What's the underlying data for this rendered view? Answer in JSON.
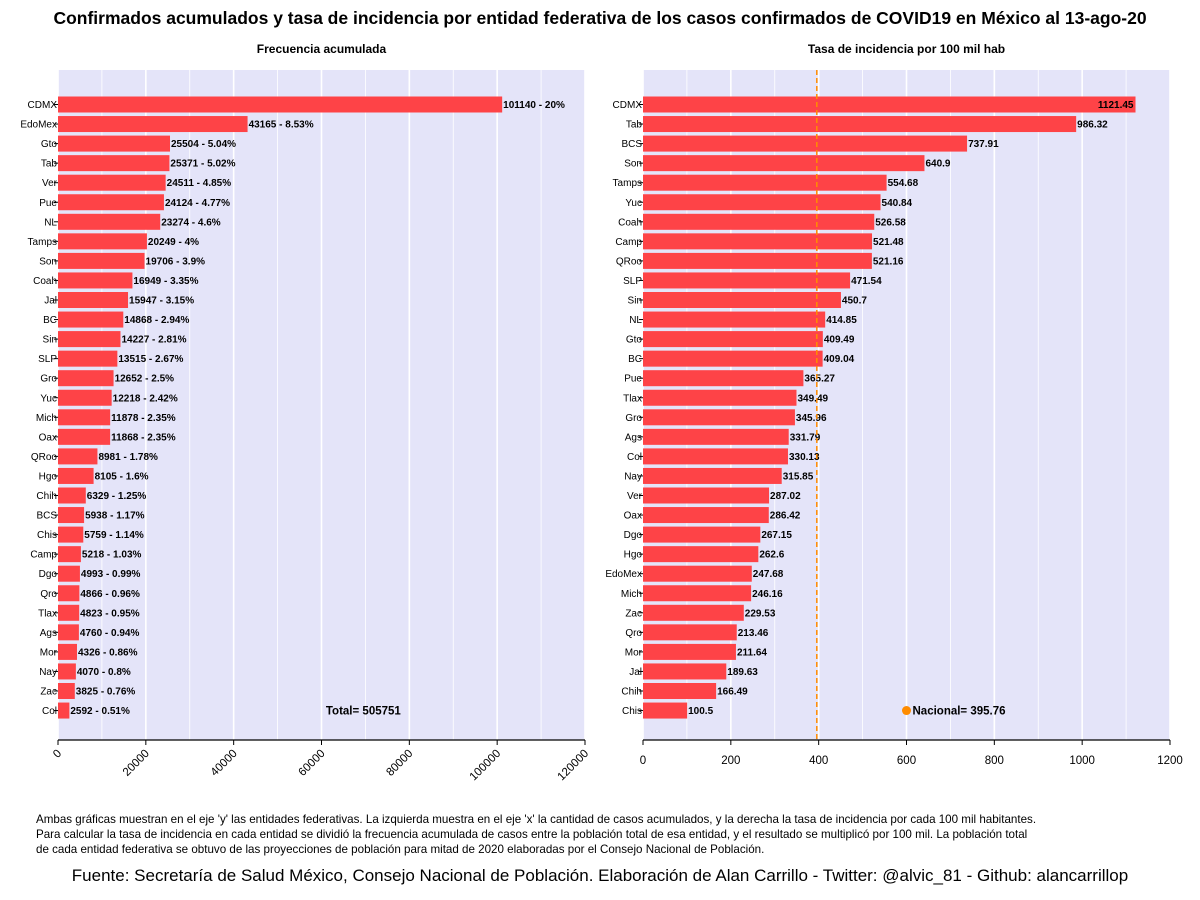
{
  "title": "Confirmados acumulados y tasa de incidencia por entidad federativa de los casos confirmados de COVID19 en México al 13-ago-20",
  "colors": {
    "bar": "#fe4347",
    "panel_bg": "#e4e4f9",
    "grid": "#ffffff",
    "reference_line": "#ff8c00",
    "reference_point": "#ff8c00"
  },
  "chart_data": [
    {
      "type": "bar",
      "orientation": "horizontal",
      "title": "Frecuencia acumulada",
      "xlabel": "",
      "ylabel": "",
      "xlim": [
        0,
        120000
      ],
      "xticks": [
        "0",
        "20000",
        "40000",
        "60000",
        "80000",
        "100000",
        "120000"
      ],
      "xtick_values": [
        0,
        20000,
        40000,
        60000,
        80000,
        100000,
        120000
      ],
      "grid": true,
      "categories": [
        "CDMX",
        "EdoMex",
        "Gto",
        "Tab",
        "Ver",
        "Pue",
        "NL",
        "Tamps",
        "Son",
        "Coah",
        "Jal",
        "BC",
        "Sin",
        "SLP",
        "Gro",
        "Yuc",
        "Mich",
        "Oax",
        "QRoo",
        "Hgo",
        "Chih",
        "BCS",
        "Chis",
        "Camp",
        "Dgo",
        "Qro",
        "Tlax",
        "Ags",
        "Mor",
        "Nay",
        "Zac",
        "Col"
      ],
      "values": [
        101140,
        43165,
        25504,
        25371,
        24511,
        24124,
        23274,
        20249,
        19706,
        16949,
        15947,
        14868,
        14227,
        13515,
        12652,
        12218,
        11878,
        11868,
        8981,
        8105,
        6329,
        5938,
        5759,
        5218,
        4993,
        4866,
        4823,
        4760,
        4326,
        4070,
        3825,
        2592
      ],
      "data_labels": [
        "101140 - 20%",
        "43165 - 8.53%",
        "25504 - 5.04%",
        "25371 - 5.02%",
        "24511 - 4.85%",
        "24124 - 4.77%",
        "23274 - 4.6%",
        "20249 - 4%",
        "19706 - 3.9%",
        "16949 - 3.35%",
        "15947 - 3.15%",
        "14868 - 2.94%",
        "14227 - 2.81%",
        "13515 - 2.67%",
        "12652 - 2.5%",
        "12218 - 2.42%",
        "11878 - 2.35%",
        "11868 - 2.35%",
        "8981 - 1.78%",
        "8105 - 1.6%",
        "6329 - 1.25%",
        "5938 - 1.17%",
        "5759 - 1.14%",
        "5218 - 1.03%",
        "4993 - 0.99%",
        "4866 - 0.96%",
        "4823 - 0.95%",
        "4760 - 0.94%",
        "4326 - 0.86%",
        "4070 - 0.8%",
        "3825 - 0.76%",
        "2592 - 0.51%"
      ],
      "annotation": "Total= 505751"
    },
    {
      "type": "bar",
      "orientation": "horizontal",
      "title": "Tasa de incidencia por 100 mil hab",
      "xlabel": "",
      "ylabel": "",
      "xlim": [
        0,
        1200
      ],
      "xticks": [
        "0",
        "200",
        "400",
        "600",
        "800",
        "1000",
        "1200"
      ],
      "xtick_values": [
        0,
        200,
        400,
        600,
        800,
        1000,
        1200
      ],
      "grid": true,
      "categories": [
        "CDMX",
        "Tab",
        "BCS",
        "Son",
        "Tamps",
        "Yuc",
        "Coah",
        "Camp",
        "QRoo",
        "SLP",
        "Sin",
        "NL",
        "Gto",
        "BC",
        "Pue",
        "Tlax",
        "Gro",
        "Ags",
        "Col",
        "Nay",
        "Ver",
        "Oax",
        "Dgo",
        "Hgo",
        "EdoMex",
        "Mich",
        "Zac",
        "Qro",
        "Mor",
        "Jal",
        "Chih",
        "Chis"
      ],
      "values": [
        1121.45,
        986.32,
        737.91,
        640.9,
        554.68,
        540.84,
        526.58,
        521.48,
        521.16,
        471.54,
        450.7,
        414.85,
        409.49,
        409.04,
        365.27,
        349.49,
        345.96,
        331.79,
        330.13,
        315.85,
        287.02,
        286.42,
        267.15,
        262.6,
        247.68,
        246.16,
        229.53,
        213.46,
        211.64,
        189.63,
        166.49,
        100.5
      ],
      "data_labels": [
        "1121.45",
        "986.32",
        "737.91",
        "640.9",
        "554.68",
        "540.84",
        "526.58",
        "521.48",
        "521.16",
        "471.54",
        "450.7",
        "414.85",
        "409.49",
        "409.04",
        "365.27",
        "349.49",
        "345.96",
        "331.79",
        "330.13",
        "315.85",
        "287.02",
        "286.42",
        "267.15",
        "262.6",
        "247.68",
        "246.16",
        "229.53",
        "213.46",
        "211.64",
        "189.63",
        "166.49",
        "100.5"
      ],
      "reference_line": 395.76,
      "annotation": "Nacional= 395.76"
    }
  ],
  "caption": [
    "Ambas gráficas muestran en el eje 'y' las entidades federativas. La izquierda muestra en el eje 'x' la cantidad de casos acumulados, y la derecha la tasa de incidencia por cada 100 mil habitantes.",
    " Para calcular la tasa de incidencia en cada entidad se dividió la frecuencia acumulada de casos entre la población total de esa entidad, y el resultado se multiplicó por 100 mil. La población total",
    " de cada entidad federativa se obtuvo de las proyecciones de población para mitad de 2020 elaboradas por el Consejo Nacional de Población."
  ],
  "source": "Fuente: Secretaría de Salud México, Consejo Nacional de Población. Elaboración de Alan Carrillo - Twitter: @alvic_81 - Github: alancarrillop"
}
